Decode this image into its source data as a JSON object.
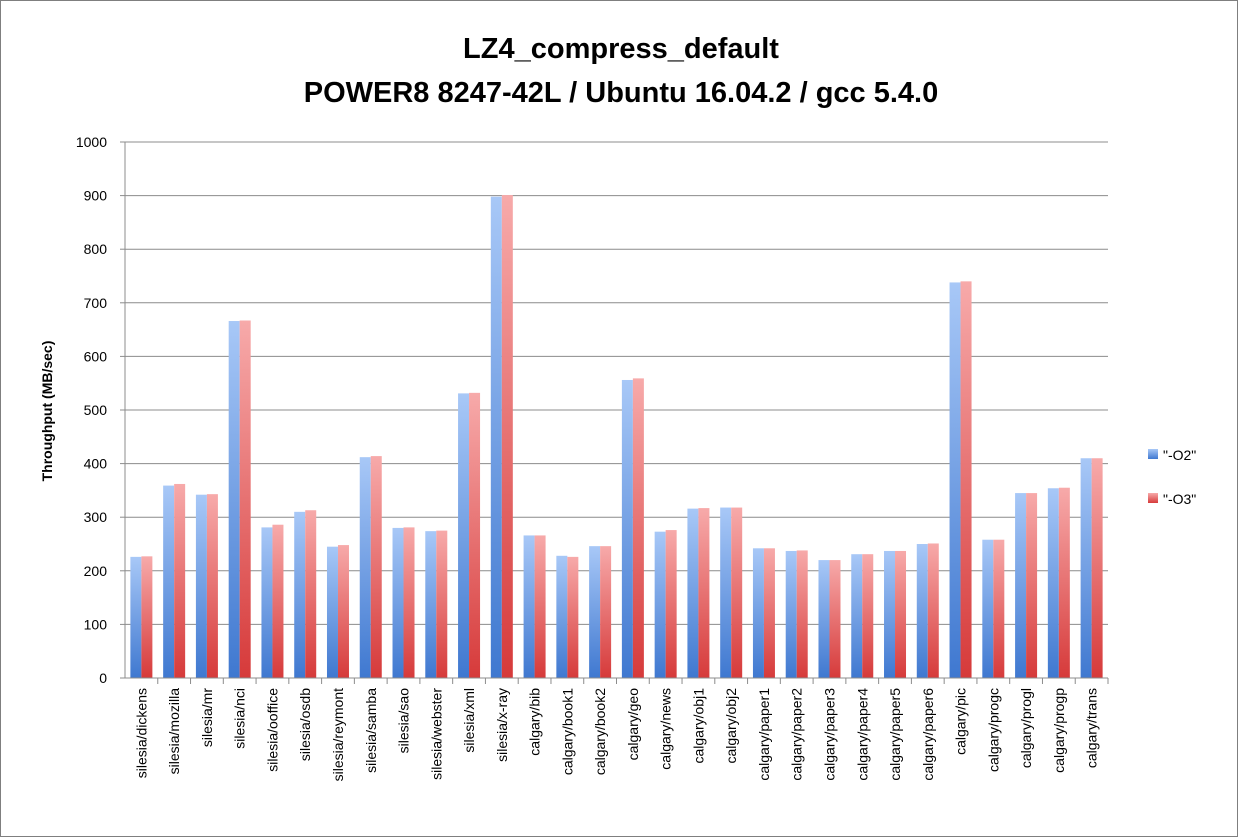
{
  "chart_data": {
    "type": "bar",
    "title_line1": "LZ4_compress_default",
    "title_line2": "POWER8 8247-42L / Ubuntu 16.04.2 / gcc 5.4.0",
    "xlabel": "",
    "ylabel": "Throughput (MB/sec)",
    "ylim": [
      0,
      1000
    ],
    "yticks": [
      0,
      100,
      200,
      300,
      400,
      500,
      600,
      700,
      800,
      900,
      1000
    ],
    "grid": true,
    "legend_position": "right",
    "categories": [
      "silesia/dickens",
      "silesia/mozilla",
      "silesia/mr",
      "silesia/nci",
      "silesia/ooffice",
      "silesia/osdb",
      "silesia/reymont",
      "silesia/samba",
      "silesia/sao",
      "silesia/webster",
      "silesia/xml",
      "silesia/x-ray",
      "calgary/bib",
      "calgary/book1",
      "calgary/book2",
      "calgary/geo",
      "calgary/news",
      "calgary/obj1",
      "calgary/obj2",
      "calgary/paper1",
      "calgary/paper2",
      "calgary/paper3",
      "calgary/paper4",
      "calgary/paper5",
      "calgary/paper6",
      "calgary/pic",
      "calgary/progc",
      "calgary/progl",
      "calgary/progp",
      "calgary/trans"
    ],
    "series": [
      {
        "name": "\"-O2\"",
        "color": "#5b8fd9",
        "values": [
          226,
          359,
          342,
          666,
          281,
          310,
          245,
          412,
          280,
          274,
          531,
          898,
          266,
          228,
          246,
          556,
          273,
          316,
          318,
          242,
          237,
          220,
          231,
          237,
          250,
          738,
          258,
          345,
          354,
          410
        ]
      },
      {
        "name": "\"-O3\"",
        "color": "#e15a5a",
        "values": [
          227,
          362,
          343,
          667,
          286,
          313,
          248,
          414,
          281,
          275,
          532,
          901,
          266,
          226,
          246,
          559,
          276,
          317,
          318,
          242,
          238,
          220,
          231,
          237,
          251,
          740,
          258,
          345,
          355,
          410
        ]
      }
    ]
  }
}
